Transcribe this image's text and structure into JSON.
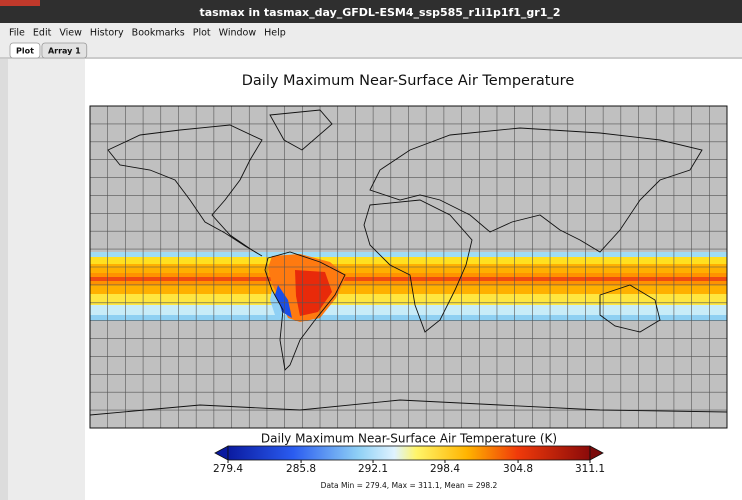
{
  "window": {
    "title": "tasmax in tasmax_day_GFDL-ESM4_ssp585_r1i1p1f1_gr1_2"
  },
  "menu": [
    "File",
    "Edit",
    "View",
    "History",
    "Bookmarks",
    "Plot",
    "Window",
    "Help"
  ],
  "tabs": [
    "Plot",
    "Array 1"
  ],
  "plot": {
    "title": "Daily Maximum Near-Surface Air Temperature",
    "colorbar": {
      "label": "Daily Maximum Near-Surface Air Temperature (K)",
      "ticks": [
        279.4,
        285.8,
        292.1,
        298.4,
        304.8,
        311.1
      ]
    },
    "stats": "Data Min = 279.4, Max = 311.1, Mean = 298.2"
  }
}
